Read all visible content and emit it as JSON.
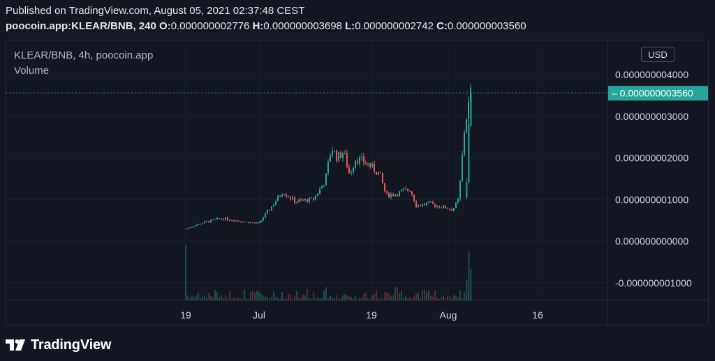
{
  "header": {
    "published": "Published on TradingView.com, August 05, 2021 02:37:48 CEST",
    "symbol": "poocoin.app:KLEAR/BNB, 240",
    "o_label": "O:",
    "o_value": "0.000000002776",
    "h_label": "H:",
    "h_value": "0.000000003698",
    "l_label": "L:",
    "l_value": "0.000000002742",
    "c_label": "C:",
    "c_value": "0.000000003560"
  },
  "legend": {
    "title": "KLEAR/BNB, 4h, poocoin.app",
    "volume_label": "Volume"
  },
  "currency_button": "USD",
  "footer": {
    "brand": "TradingView"
  },
  "colors": {
    "background": "#131722",
    "grid": "#1e222d",
    "up": "#26a69a",
    "down": "#ef5350",
    "last_price_bg": "#26a69a",
    "text": "#d1d4dc"
  },
  "chart_data": {
    "type": "candlestick",
    "y_ticks": [
      "0.000000004000",
      "0.000000003000",
      "0.000000002000",
      "0.000000001000",
      "0.000000000000",
      "-0.000000001000"
    ],
    "x_ticks": [
      "19",
      "Jul",
      "19",
      "Aug",
      "16"
    ],
    "last_price_label": "0.000000003560",
    "ylim": [
      -1.4e-09,
      4.6e-09
    ],
    "grid": true,
    "series": [
      {
        "name": "KLEAR/BNB",
        "date": "Jun 19",
        "value": 3e-10
      },
      {
        "date": "Jun 22",
        "value": 4.5e-10
      },
      {
        "date": "Jun 25",
        "value": 5.5e-10
      },
      {
        "date": "Jun 28",
        "value": 4.8e-10
      },
      {
        "date": "Jul 01",
        "value": 4.2e-10
      },
      {
        "date": "Jul 03",
        "value": 8e-10
      },
      {
        "date": "Jul 05",
        "value": 1.2e-09
      },
      {
        "date": "Jul 07",
        "value": 9.5e-10
      },
      {
        "date": "Jul 10",
        "value": 1e-09
      },
      {
        "date": "Jul 12",
        "value": 1.45e-09
      },
      {
        "date": "Jul 13",
        "value": 2.25e-09
      },
      {
        "date": "Jul 14",
        "value": 2e-09
      },
      {
        "date": "Jul 15",
        "value": 2.15e-09
      },
      {
        "date": "Jul 16",
        "value": 1.6e-09
      },
      {
        "date": "Jul 17",
        "value": 2e-09
      },
      {
        "date": "Jul 19",
        "value": 1.85e-09
      },
      {
        "date": "Jul 21",
        "value": 1.6e-09
      },
      {
        "date": "Jul 22",
        "value": 1.1e-09
      },
      {
        "date": "Jul 24",
        "value": 1.15e-09
      },
      {
        "date": "Jul 26",
        "value": 1.25e-09
      },
      {
        "date": "Jul 27",
        "value": 8.5e-10
      },
      {
        "date": "Jul 29",
        "value": 9e-10
      },
      {
        "date": "Aug 01",
        "value": 8e-10
      },
      {
        "date": "Aug 02",
        "value": 7.5e-10
      },
      {
        "date": "Aug 03",
        "value": 1e-09
      },
      {
        "date": "Aug 04",
        "value": 2.8e-09
      },
      {
        "date": "Aug 05",
        "value": 3.56e-09
      }
    ]
  }
}
